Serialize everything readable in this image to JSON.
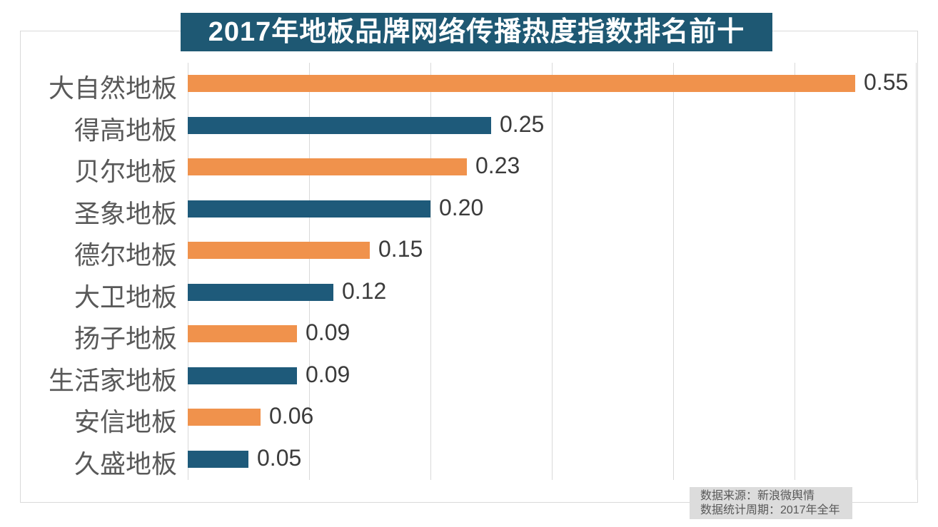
{
  "title": "2017年地板品牌网络传播热度指数排名前十",
  "colors": {
    "title_bg": "#1e5873",
    "bar_orange": "#f0924c",
    "bar_teal": "#1e5a7a",
    "grid": "#d9d9d9",
    "category_label": "#595959",
    "value_label": "#3b3b3b",
    "source_bg": "#dcdcdc",
    "source_text": "#595959"
  },
  "source": {
    "line1": "数据来源：新浪微舆情",
    "line2": "数据统计周期：2017年全年"
  },
  "chart_data": {
    "type": "bar",
    "orientation": "horizontal",
    "title": "2017年地板品牌网络传播热度指数排名前十",
    "categories": [
      "大自然地板",
      "得高地板",
      "贝尔地板",
      "圣象地板",
      "德尔地板",
      "大卫地板",
      "扬子地板",
      "生活家地板",
      "安信地板",
      "久盛地板"
    ],
    "values": [
      0.55,
      0.25,
      0.23,
      0.2,
      0.15,
      0.12,
      0.09,
      0.09,
      0.06,
      0.05
    ],
    "value_labels": [
      "0.55",
      "0.25",
      "0.23",
      "0.20",
      "0.15",
      "0.12",
      "0.09",
      "0.09",
      "0.06",
      "0.05"
    ],
    "bar_color_keys": [
      "bar_orange",
      "bar_teal",
      "bar_orange",
      "bar_teal",
      "bar_orange",
      "bar_teal",
      "bar_orange",
      "bar_teal",
      "bar_orange",
      "bar_teal"
    ],
    "xlabel": "",
    "ylabel": "",
    "xlim": [
      0,
      0.6
    ],
    "grid": true,
    "gridline_interval": 0.1,
    "legend": false,
    "data_labels": true,
    "source_note": [
      "数据来源：新浪微舆情",
      "数据统计周期：2017年全年"
    ]
  }
}
